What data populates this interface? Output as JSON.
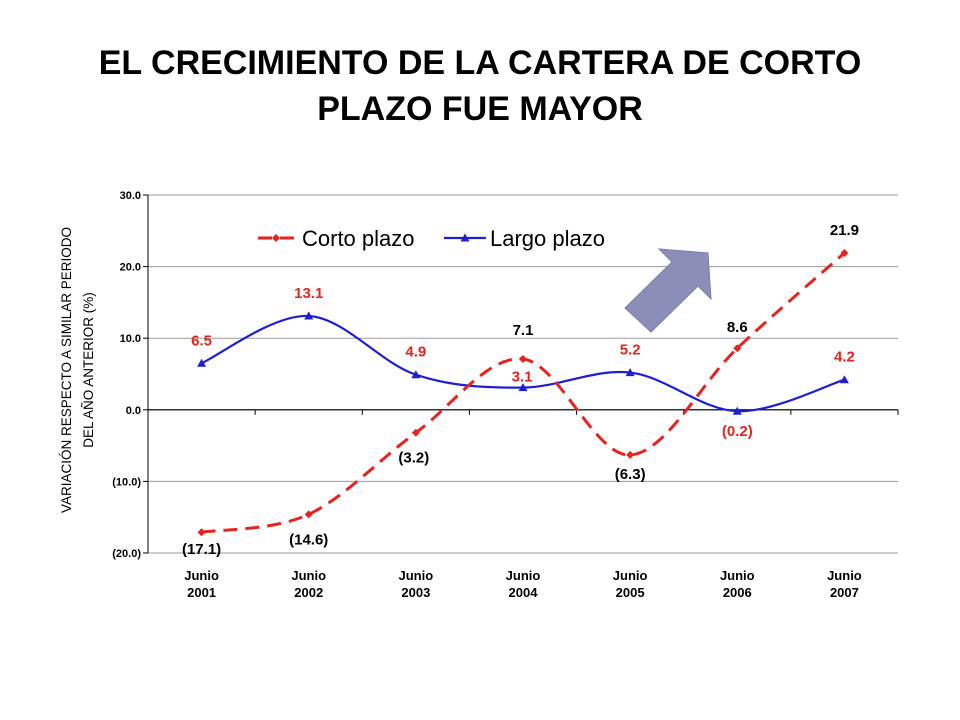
{
  "page": {
    "title_line1": "EL CRECIMIENTO DE LA CARTERA DE CORTO",
    "title_line2": "PLAZO FUE MAYOR"
  },
  "chart_data": {
    "type": "line",
    "title": "",
    "ylabel_line1": "VARIACIÓN RESPECTO A SIMILAR PERIODO",
    "ylabel_line2": "DEL AÑO ANTERIOR (%)",
    "xlabel": "",
    "categories": [
      [
        "Junio",
        "2001"
      ],
      [
        "Junio",
        "2002"
      ],
      [
        "Junio",
        "2003"
      ],
      [
        "Junio",
        "2004"
      ],
      [
        "Junio",
        "2005"
      ],
      [
        "Junio",
        "2006"
      ],
      [
        "Junio",
        "2007"
      ]
    ],
    "ylim": [
      -20,
      30
    ],
    "yticks": [
      30,
      20,
      10,
      0,
      -10,
      -20
    ],
    "ytick_labels": [
      "30.0",
      "20.0",
      "10.0",
      "0.0",
      "(10.0)",
      "(20.0)"
    ],
    "grid": true,
    "legend_position": "top",
    "annotation": "upward arrow",
    "series": [
      {
        "name": "Corto plazo",
        "color": "#e8231d",
        "style": "dashed",
        "marker": "diamond",
        "values": [
          -17.1,
          -14.6,
          -3.2,
          7.1,
          -6.3,
          8.6,
          21.9
        ],
        "labels": [
          "(17.1)",
          "(14.6)",
          "(3.2)",
          "7.1",
          "(6.3)",
          "8.6",
          "21.9"
        ],
        "label_color": "#000000"
      },
      {
        "name": "Largo plazo",
        "color": "#1f1fd0",
        "style": "solid",
        "marker": "triangle",
        "values": [
          6.5,
          13.1,
          4.9,
          3.1,
          5.2,
          -0.2,
          4.2
        ],
        "labels": [
          "6.5",
          "13.1",
          "4.9",
          "3.1",
          "5.2",
          "(0.2)",
          "4.2"
        ],
        "label_color": "#e8231d"
      }
    ]
  }
}
